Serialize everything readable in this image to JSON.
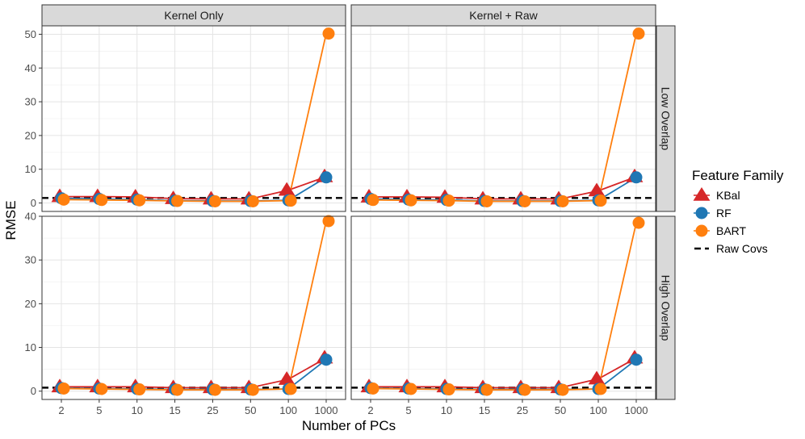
{
  "chart_data": {
    "type": "line",
    "xlabel": "Number of PCs",
    "ylabel": "RMSE",
    "x_ticks": [
      "2",
      "5",
      "10",
      "15",
      "25",
      "50",
      "100",
      "1000"
    ],
    "columns": [
      "Kernel Only",
      "Kernel + Raw"
    ],
    "rows": [
      "Low Overlap",
      "High Overlap"
    ],
    "legend": {
      "title": "Feature Family",
      "position": "right",
      "entries": [
        {
          "key": "kbal",
          "label": "KBal",
          "color": "#D62728",
          "shape": "triangle"
        },
        {
          "key": "rf",
          "label": "RF",
          "color": "#1F77B4",
          "shape": "circle"
        },
        {
          "key": "bart",
          "label": "BART",
          "color": "#FF7F0E",
          "shape": "circle"
        },
        {
          "key": "raw",
          "label": "Raw Covs",
          "color": "#000000",
          "shape": "dashed-line"
        }
      ]
    },
    "grid": true,
    "panels": [
      {
        "column": "Kernel Only",
        "row": "Low Overlap",
        "ylim": [
          -2.5,
          52.5
        ],
        "y_ticks": [
          0,
          10,
          20,
          30,
          40,
          50
        ],
        "raw_covs": 1.5,
        "series": {
          "kbal": [
            1.9,
            1.9,
            1.8,
            1.3,
            1.2,
            1.2,
            3.8,
            7.8
          ],
          "rf": [
            1.4,
            1.2,
            1.0,
            0.7,
            0.6,
            0.6,
            0.8,
            7.6
          ],
          "bart": [
            1.0,
            0.9,
            0.8,
            0.6,
            0.5,
            0.5,
            0.7,
            50.2
          ]
        }
      },
      {
        "column": "Kernel + Raw",
        "row": "Low Overlap",
        "ylim": [
          -2.5,
          52.5
        ],
        "y_ticks": [
          0,
          10,
          20,
          30,
          40,
          50
        ],
        "raw_covs": 1.5,
        "series": {
          "kbal": [
            1.8,
            1.8,
            1.7,
            1.2,
            1.2,
            1.2,
            3.6,
            7.8
          ],
          "rf": [
            1.2,
            1.0,
            0.9,
            0.6,
            0.6,
            0.6,
            0.8,
            7.6
          ],
          "bart": [
            0.9,
            0.8,
            0.7,
            0.5,
            0.5,
            0.5,
            0.7,
            50.2
          ]
        }
      },
      {
        "column": "Kernel Only",
        "row": "High Overlap",
        "ylim": [
          -1.9,
          40.0
        ],
        "y_ticks": [
          0,
          10,
          20,
          30,
          40
        ],
        "raw_covs": 0.8,
        "series": {
          "kbal": [
            1.0,
            1.0,
            1.0,
            0.8,
            0.8,
            0.8,
            2.7,
            7.6
          ],
          "rf": [
            0.7,
            0.6,
            0.5,
            0.4,
            0.4,
            0.4,
            0.5,
            7.2
          ],
          "bart": [
            0.6,
            0.5,
            0.4,
            0.3,
            0.3,
            0.3,
            0.5,
            38.9
          ]
        }
      },
      {
        "column": "Kernel + Raw",
        "row": "High Overlap",
        "ylim": [
          -1.9,
          40.0
        ],
        "y_ticks": [
          0,
          10,
          20,
          30,
          40
        ],
        "raw_covs": 0.8,
        "series": {
          "kbal": [
            1.0,
            1.0,
            1.0,
            0.8,
            0.8,
            0.8,
            2.8,
            7.6
          ],
          "rf": [
            0.7,
            0.6,
            0.5,
            0.4,
            0.4,
            0.4,
            0.5,
            7.2
          ],
          "bart": [
            0.6,
            0.5,
            0.4,
            0.3,
            0.3,
            0.3,
            0.5,
            38.5
          ]
        }
      }
    ]
  }
}
